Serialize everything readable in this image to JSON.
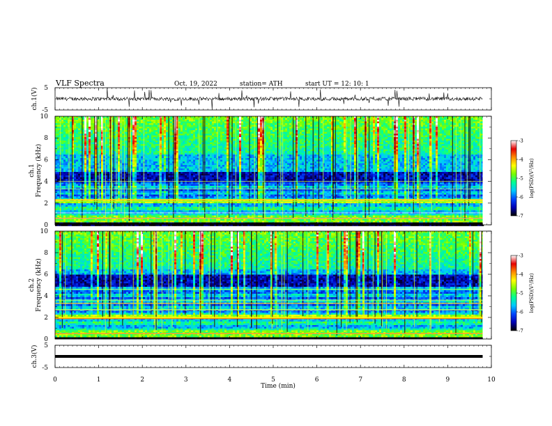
{
  "header": {
    "title": "VLF Spectra",
    "date": "Oct. 19, 2022",
    "station": "station= ATH",
    "start": "start  UT  =   12: 10: 1"
  },
  "chart_data": [
    {
      "type": "line",
      "panel": "ch1-waveform",
      "ylabel": "ch.1(V)",
      "yticks": [
        "5",
        "-5"
      ],
      "ylim": [
        -5,
        5
      ],
      "xlim": [
        0,
        10
      ],
      "x_end_data": 9.8,
      "description_values": {
        "baseline": 0,
        "noise_amplitude": 1.2
      }
    },
    {
      "type": "heatmap",
      "panel": "ch1-spectrogram",
      "ylabel": "ch.1",
      "ylabel2": "Frequency  (kHz)",
      "ylim": [
        0,
        10
      ],
      "yticks": [
        "0",
        "2",
        "4",
        "6",
        "8",
        "10"
      ],
      "xlim": [
        0,
        10
      ],
      "x_end_data": 9.8,
      "dark_band_khz": [
        4.0,
        5.0
      ],
      "colorbar": {
        "label": "log(PSD)(V²/Hz)",
        "range": [
          -7,
          -3
        ],
        "ticks": [
          "-3",
          "-4",
          "-5",
          "-6",
          "-7"
        ]
      }
    },
    {
      "type": "heatmap",
      "panel": "ch2-spectrogram",
      "ylabel": "ch.2",
      "ylabel2": "Frequency  (kHz)",
      "ylim": [
        0,
        10
      ],
      "yticks": [
        "0",
        "2",
        "4",
        "6",
        "8",
        "10"
      ],
      "xlim": [
        0,
        10
      ],
      "x_end_data": 9.8,
      "dark_band_khz": [
        5.0,
        6.0
      ],
      "colorbar": {
        "label": "log(PSD)(V²/Hz)",
        "range": [
          -7,
          -3
        ],
        "ticks": [
          "-3",
          "-4",
          "-5",
          "-6",
          "-7"
        ]
      }
    },
    {
      "type": "line",
      "panel": "ch3-waveform",
      "ylabel": "ch.3(V)",
      "yticks": [
        "5",
        "-5"
      ],
      "ylim": [
        -5,
        5
      ],
      "xlim": [
        0,
        10
      ],
      "x_end_data": 9.8,
      "description_values": {
        "baseline": 0
      }
    }
  ],
  "xaxis": {
    "label": "Time  (min)",
    "ticks": [
      "0",
      "1",
      "2",
      "3",
      "4",
      "5",
      "6",
      "7",
      "8",
      "9",
      "10"
    ]
  },
  "colors": {
    "scale": [
      "#000000",
      "#0000b4",
      "#0046ff",
      "#00c8ff",
      "#00ff96",
      "#78ff00",
      "#ffff00",
      "#ff8c00",
      "#e60000",
      "#ffffff"
    ]
  }
}
